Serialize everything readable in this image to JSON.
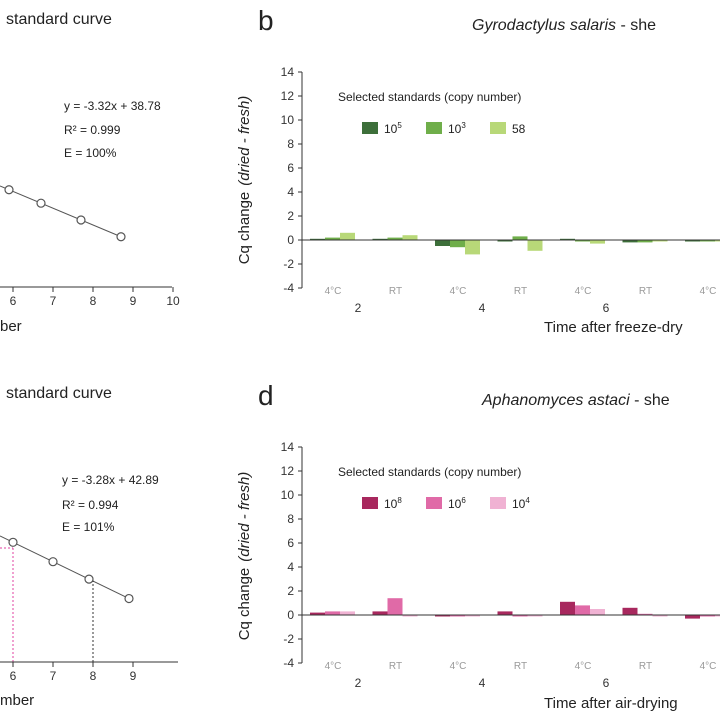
{
  "colors": {
    "axis": "#333333",
    "gs": [
      "#3d6f3a",
      "#6fae4a",
      "#b8d878"
    ],
    "aa": [
      "#a8285e",
      "#e06aa7",
      "#f0b2d3"
    ]
  },
  "chart_data": [
    {
      "id": "a",
      "type": "scatter",
      "title": "standard curve",
      "xlabel": "ber",
      "xticks": [
        "6",
        "7",
        "8",
        "9",
        "10"
      ],
      "xlim": [
        5.3,
        10
      ],
      "points_x": [
        5.9,
        6.7,
        7.7,
        8.7
      ],
      "points_y_px": null,
      "annotations": [
        "y = -3.32x + 38.78",
        "R² = 0.999",
        "E = 100%"
      ]
    },
    {
      "id": "b",
      "type": "bar",
      "panel_label": "b",
      "title": "Gyrodactylus salaris - she",
      "title_italic": "Gyrodactylus salaris",
      "title_plain": " - she",
      "ylabel_main": "Cq change",
      "ylabel_italic": "(dried - fresh)",
      "ylim": [
        -4,
        14
      ],
      "yticks": [
        "-4",
        "-2",
        "0",
        "2",
        "4",
        "6",
        "8",
        "10",
        "12",
        "14"
      ],
      "xticks": [
        "2",
        "4",
        "6"
      ],
      "xlabel": "Time after freeze-dry",
      "legend_title": "Selected standards (copy number)",
      "legend": [
        {
          "label": "10",
          "sup": "5"
        },
        {
          "label": "10",
          "sup": "3"
        },
        {
          "label": "58",
          "sup": ""
        }
      ],
      "conditions": [
        "4°C",
        "RT",
        "4°C",
        "RT",
        "4°C",
        "RT",
        "4°C"
      ],
      "series": [
        {
          "name": "10^5",
          "values": [
            0.1,
            0.1,
            -0.5,
            -0.1,
            0.1,
            -0.2,
            0.0
          ]
        },
        {
          "name": "10^3",
          "values": [
            0.2,
            0.2,
            -0.6,
            0.3,
            0.0,
            -0.2,
            0.0
          ]
        },
        {
          "name": "58",
          "values": [
            0.6,
            0.4,
            -1.2,
            -0.9,
            -0.3,
            -0.1,
            0.0
          ]
        }
      ]
    },
    {
      "id": "c",
      "type": "scatter",
      "title": "standard curve",
      "xlabel": "mber",
      "xticks": [
        "6",
        "7",
        "8",
        "9"
      ],
      "xlim": [
        5.3,
        10
      ],
      "points_x": [
        6.0,
        7.0,
        7.9,
        8.9
      ],
      "annotations": [
        "y = -3.28x + 42.89",
        "R² = 0.994",
        "E = 101%"
      ]
    },
    {
      "id": "d",
      "type": "bar",
      "panel_label": "d",
      "title": "Aphanomyces astaci - she",
      "title_italic": "Aphanomyces astaci",
      "title_plain": "  - she",
      "ylabel_main": "Cq change",
      "ylabel_italic": "(dried - fresh)",
      "ylim": [
        -4,
        14
      ],
      "yticks": [
        "-4",
        "-2",
        "0",
        "2",
        "4",
        "6",
        "8",
        "10",
        "12",
        "14"
      ],
      "xticks": [
        "2",
        "4",
        "6"
      ],
      "xlabel": "Time after air-drying",
      "legend_title": "Selected standards (copy number)",
      "legend": [
        {
          "label": "10",
          "sup": "8"
        },
        {
          "label": "10",
          "sup": "6"
        },
        {
          "label": "10",
          "sup": "4"
        }
      ],
      "conditions": [
        "4°C",
        "RT",
        "4°C",
        "RT",
        "4°C",
        "RT",
        "4°C"
      ],
      "series": [
        {
          "name": "10^8",
          "values": [
            0.2,
            0.3,
            -0.1,
            0.3,
            1.1,
            0.6,
            -0.3
          ]
        },
        {
          "name": "10^6",
          "values": [
            0.3,
            1.4,
            -0.1,
            0.0,
            0.8,
            0.1,
            0.0
          ]
        },
        {
          "name": "10^4",
          "values": [
            0.3,
            0.0,
            0.0,
            0.0,
            0.5,
            0.0,
            0.0
          ]
        }
      ]
    }
  ]
}
